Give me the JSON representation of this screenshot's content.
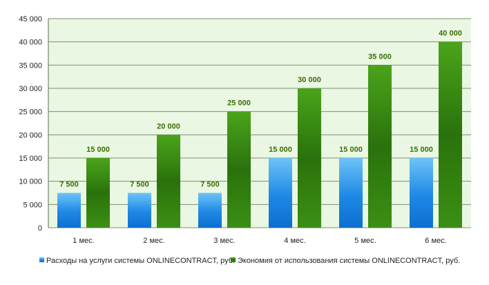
{
  "chart_data": {
    "type": "bar",
    "categories": [
      "1 мес.",
      "2 мес.",
      "3 мес.",
      "4 мес.",
      "5 мес.",
      "6 мес."
    ],
    "series": [
      {
        "name": "Расходы на услуги системы ONLINECONTRACT, руб.",
        "values": [
          7500,
          7500,
          7500,
          15000,
          15000,
          15000
        ],
        "labels": [
          "7 500",
          "7 500",
          "7 500",
          "15 000",
          "15 000",
          "15 000"
        ],
        "color": "#1e88e5"
      },
      {
        "name": "Экономия от использования системы ONLINECONTRACT, руб.",
        "values": [
          15000,
          20000,
          25000,
          30000,
          35000,
          40000
        ],
        "labels": [
          "15 000",
          "20 000",
          "25 000",
          "30 000",
          "35 000",
          "40 000"
        ],
        "color": "#2e7d0f"
      }
    ],
    "yticks": [
      0,
      5000,
      10000,
      15000,
      20000,
      25000,
      30000,
      35000,
      40000,
      45000
    ],
    "ytick_labels": [
      "0",
      "5 000",
      "10 000",
      "15 000",
      "20 000",
      "25 000",
      "30 000",
      "35 000",
      "40 000",
      "45 000"
    ],
    "ylim": [
      0,
      45000
    ],
    "title": "",
    "xlabel": "",
    "ylabel": "",
    "grid": true,
    "legend_position": "bottom",
    "plot_background": "#eaf7e2",
    "gridline_color": "#7d8f6f",
    "data_label_color": "#3a6e08"
  }
}
